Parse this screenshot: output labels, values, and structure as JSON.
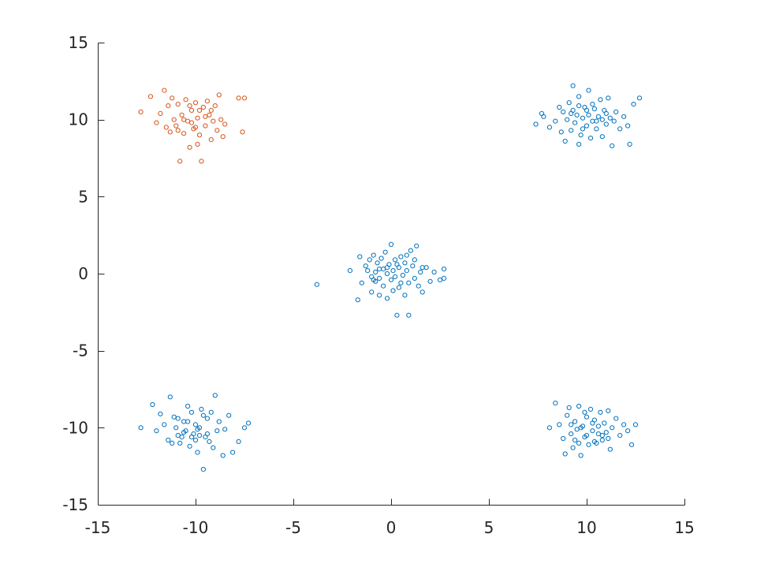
{
  "chart_data": {
    "type": "scatter",
    "title": "",
    "xlabel": "",
    "ylabel": "",
    "xlim": [
      -15,
      15
    ],
    "ylim": [
      -15,
      15
    ],
    "xticks": [
      -15,
      -10,
      -5,
      0,
      5,
      10,
      15
    ],
    "yticks": [
      -15,
      -10,
      -5,
      0,
      5,
      10,
      15
    ],
    "xtick_labels": [
      "-15",
      "-10",
      "-5",
      "0",
      "5",
      "10",
      "15"
    ],
    "ytick_labels": [
      "-15",
      "-10",
      "-5",
      "0",
      "5",
      "10",
      "15"
    ],
    "grid": false,
    "box": false,
    "marker": "open-circle",
    "series": [
      {
        "color": "#0072bd",
        "points": [
          [
            -3.8,
            -0.7
          ],
          [
            -2.1,
            0.2
          ],
          [
            -1.7,
            -1.7
          ],
          [
            -1.6,
            1.1
          ],
          [
            -1.5,
            -0.6
          ],
          [
            -1.3,
            0.5
          ],
          [
            -1.2,
            0.2
          ],
          [
            -1.1,
            0.9
          ],
          [
            -1.0,
            -0.2
          ],
          [
            -1.0,
            -1.2
          ],
          [
            -0.9,
            1.2
          ],
          [
            -0.8,
            0.1
          ],
          [
            -0.8,
            -0.5
          ],
          [
            -0.7,
            0.7
          ],
          [
            -0.6,
            -0.3
          ],
          [
            -0.6,
            -1.4
          ],
          [
            -0.5,
            1.0
          ],
          [
            -0.4,
            0.3
          ],
          [
            -0.4,
            -0.8
          ],
          [
            -0.3,
            1.4
          ],
          [
            -0.2,
            0.0
          ],
          [
            -0.2,
            -1.6
          ],
          [
            -0.1,
            0.6
          ],
          [
            0.0,
            -0.4
          ],
          [
            0.0,
            1.9
          ],
          [
            0.1,
            0.2
          ],
          [
            0.1,
            -1.1
          ],
          [
            0.2,
            0.9
          ],
          [
            0.2,
            -0.2
          ],
          [
            0.3,
            -2.7
          ],
          [
            0.4,
            0.4
          ],
          [
            0.4,
            -0.9
          ],
          [
            0.5,
            1.1
          ],
          [
            0.6,
            -0.1
          ],
          [
            0.7,
            0.7
          ],
          [
            0.7,
            -1.4
          ],
          [
            0.8,
            0.2
          ],
          [
            0.9,
            -2.7
          ],
          [
            0.9,
            -0.6
          ],
          [
            1.0,
            1.5
          ],
          [
            1.1,
            0.5
          ],
          [
            1.2,
            -0.3
          ],
          [
            1.3,
            1.8
          ],
          [
            1.4,
            -0.8
          ],
          [
            1.5,
            0.1
          ],
          [
            1.6,
            -1.2
          ],
          [
            1.8,
            0.4
          ],
          [
            2.0,
            -0.5
          ],
          [
            2.2,
            0.1
          ],
          [
            2.5,
            -0.4
          ],
          [
            2.7,
            0.3
          ],
          [
            2.7,
            -0.3
          ],
          [
            -0.6,
            0.3
          ],
          [
            0.3,
            0.6
          ],
          [
            0.5,
            -0.6
          ],
          [
            -0.2,
            0.4
          ],
          [
            1.2,
            0.9
          ],
          [
            -0.9,
            -0.4
          ],
          [
            1.6,
            0.4
          ],
          [
            0.8,
            1.2
          ],
          [
            7.4,
            9.7
          ],
          [
            7.7,
            10.4
          ],
          [
            7.8,
            10.2
          ],
          [
            8.1,
            9.5
          ],
          [
            8.4,
            9.9
          ],
          [
            8.6,
            10.8
          ],
          [
            8.7,
            9.2
          ],
          [
            8.8,
            10.5
          ],
          [
            8.9,
            8.6
          ],
          [
            9.0,
            10.0
          ],
          [
            9.1,
            11.1
          ],
          [
            9.2,
            9.3
          ],
          [
            9.3,
            10.6
          ],
          [
            9.3,
            12.2
          ],
          [
            9.4,
            9.8
          ],
          [
            9.5,
            10.3
          ],
          [
            9.6,
            8.4
          ],
          [
            9.6,
            11.5
          ],
          [
            9.7,
            9.0
          ],
          [
            9.8,
            10.1
          ],
          [
            9.9,
            10.8
          ],
          [
            10.0,
            9.6
          ],
          [
            10.1,
            11.9
          ],
          [
            10.1,
            10.3
          ],
          [
            10.2,
            8.8
          ],
          [
            10.3,
            9.9
          ],
          [
            10.4,
            10.7
          ],
          [
            10.5,
            9.4
          ],
          [
            10.6,
            10.2
          ],
          [
            10.7,
            11.3
          ],
          [
            10.8,
            8.9
          ],
          [
            10.9,
            10.6
          ],
          [
            11.0,
            9.7
          ],
          [
            11.1,
            11.4
          ],
          [
            11.2,
            10.1
          ],
          [
            11.3,
            8.3
          ],
          [
            11.4,
            9.9
          ],
          [
            11.5,
            10.5
          ],
          [
            11.7,
            9.4
          ],
          [
            11.9,
            10.2
          ],
          [
            12.1,
            9.6
          ],
          [
            12.2,
            8.4
          ],
          [
            12.4,
            11.0
          ],
          [
            12.7,
            11.4
          ],
          [
            9.2,
            10.4
          ],
          [
            10.0,
            10.6
          ],
          [
            10.5,
            9.9
          ],
          [
            9.8,
            9.4
          ],
          [
            10.3,
            11.0
          ],
          [
            11.0,
            10.4
          ],
          [
            9.6,
            10.9
          ],
          [
            10.8,
            10.0
          ],
          [
            -12.8,
            -10.0
          ],
          [
            -12.2,
            -8.5
          ],
          [
            -12.0,
            -10.2
          ],
          [
            -11.6,
            -9.8
          ],
          [
            -11.4,
            -10.8
          ],
          [
            -11.3,
            -8.0
          ],
          [
            -11.1,
            -9.3
          ],
          [
            -10.9,
            -10.5
          ],
          [
            -10.8,
            -11.0
          ],
          [
            -10.6,
            -9.6
          ],
          [
            -10.5,
            -10.2
          ],
          [
            -10.4,
            -8.6
          ],
          [
            -10.3,
            -11.2
          ],
          [
            -10.2,
            -9.0
          ],
          [
            -10.1,
            -10.4
          ],
          [
            -10.0,
            -9.8
          ],
          [
            -9.9,
            -11.6
          ],
          [
            -9.8,
            -10.0
          ],
          [
            -9.7,
            -8.8
          ],
          [
            -9.6,
            -12.7
          ],
          [
            -9.5,
            -10.6
          ],
          [
            -9.4,
            -9.4
          ],
          [
            -9.3,
            -10.9
          ],
          [
            -9.2,
            -9.0
          ],
          [
            -9.1,
            -11.3
          ],
          [
            -9.0,
            -7.9
          ],
          [
            -8.9,
            -10.2
          ],
          [
            -8.8,
            -9.6
          ],
          [
            -8.6,
            -11.8
          ],
          [
            -8.5,
            -10.1
          ],
          [
            -8.3,
            -9.2
          ],
          [
            -8.1,
            -11.6
          ],
          [
            -7.8,
            -10.9
          ],
          [
            -7.5,
            -10.0
          ],
          [
            -7.3,
            -9.7
          ],
          [
            -11.8,
            -9.1
          ],
          [
            -11.0,
            -10.0
          ],
          [
            -10.7,
            -10.6
          ],
          [
            -10.2,
            -10.6
          ],
          [
            -9.9,
            -10.1
          ],
          [
            -10.4,
            -9.6
          ],
          [
            -10.0,
            -10.8
          ],
          [
            -9.6,
            -9.2
          ],
          [
            -10.6,
            -10.3
          ],
          [
            -9.4,
            -10.4
          ],
          [
            -10.9,
            -9.4
          ],
          [
            -11.2,
            -11.0
          ],
          [
            -9.8,
            -10.5
          ],
          [
            8.1,
            -10.0
          ],
          [
            8.4,
            -8.4
          ],
          [
            8.6,
            -9.8
          ],
          [
            8.8,
            -10.7
          ],
          [
            8.9,
            -11.7
          ],
          [
            9.0,
            -9.2
          ],
          [
            9.1,
            -8.7
          ],
          [
            9.2,
            -10.4
          ],
          [
            9.3,
            -11.3
          ],
          [
            9.4,
            -9.6
          ],
          [
            9.5,
            -10.1
          ],
          [
            9.6,
            -8.6
          ],
          [
            9.7,
            -11.8
          ],
          [
            9.8,
            -9.9
          ],
          [
            9.9,
            -10.6
          ],
          [
            10.0,
            -9.3
          ],
          [
            10.1,
            -11.1
          ],
          [
            10.2,
            -8.8
          ],
          [
            10.3,
            -10.2
          ],
          [
            10.4,
            -9.5
          ],
          [
            10.5,
            -11.0
          ],
          [
            10.6,
            -10.4
          ],
          [
            10.7,
            -9.0
          ],
          [
            10.8,
            -10.8
          ],
          [
            10.9,
            -9.7
          ],
          [
            11.0,
            -10.3
          ],
          [
            11.1,
            -8.9
          ],
          [
            11.2,
            -11.4
          ],
          [
            11.3,
            -10.0
          ],
          [
            11.5,
            -9.4
          ],
          [
            11.7,
            -10.5
          ],
          [
            11.9,
            -9.8
          ],
          [
            12.1,
            -10.2
          ],
          [
            12.3,
            -11.1
          ],
          [
            12.5,
            -9.8
          ],
          [
            9.7,
            -10.0
          ],
          [
            10.0,
            -10.5
          ],
          [
            10.3,
            -9.7
          ],
          [
            9.9,
            -9.0
          ],
          [
            10.6,
            -9.9
          ],
          [
            9.4,
            -10.8
          ],
          [
            10.8,
            -10.5
          ],
          [
            9.2,
            -9.8
          ],
          [
            10.4,
            -10.9
          ],
          [
            11.1,
            -10.7
          ],
          [
            9.6,
            -11.0
          ]
        ]
      },
      {
        "color": "#d95319",
        "points": [
          [
            -12.8,
            10.5
          ],
          [
            -12.3,
            11.5
          ],
          [
            -12.0,
            9.8
          ],
          [
            -11.8,
            10.4
          ],
          [
            -11.6,
            11.9
          ],
          [
            -11.5,
            9.5
          ],
          [
            -11.4,
            10.9
          ],
          [
            -11.3,
            9.2
          ],
          [
            -11.2,
            11.4
          ],
          [
            -11.1,
            10.0
          ],
          [
            -11.0,
            9.6
          ],
          [
            -10.9,
            11.0
          ],
          [
            -10.8,
            7.3
          ],
          [
            -10.7,
            10.3
          ],
          [
            -10.6,
            9.1
          ],
          [
            -10.5,
            11.3
          ],
          [
            -10.4,
            9.9
          ],
          [
            -10.3,
            8.2
          ],
          [
            -10.2,
            10.6
          ],
          [
            -10.1,
            9.4
          ],
          [
            -10.0,
            11.1
          ],
          [
            -9.9,
            10.1
          ],
          [
            -9.8,
            9.0
          ],
          [
            -9.7,
            7.3
          ],
          [
            -9.6,
            10.8
          ],
          [
            -9.5,
            9.6
          ],
          [
            -9.4,
            11.2
          ],
          [
            -9.3,
            10.3
          ],
          [
            -9.2,
            8.7
          ],
          [
            -9.1,
            9.9
          ],
          [
            -9.0,
            10.9
          ],
          [
            -8.9,
            9.3
          ],
          [
            -8.8,
            11.6
          ],
          [
            -8.7,
            10.0
          ],
          [
            -8.6,
            8.9
          ],
          [
            -8.5,
            9.7
          ],
          [
            -7.8,
            11.4
          ],
          [
            -7.6,
            9.2
          ],
          [
            -7.5,
            11.4
          ],
          [
            -10.6,
            10.0
          ],
          [
            -10.0,
            9.5
          ],
          [
            -9.8,
            10.6
          ],
          [
            -10.3,
            10.9
          ],
          [
            -9.5,
            10.2
          ],
          [
            -10.9,
            9.3
          ],
          [
            -10.2,
            9.8
          ],
          [
            -9.2,
            10.6
          ],
          [
            -9.9,
            8.4
          ]
        ]
      }
    ]
  }
}
